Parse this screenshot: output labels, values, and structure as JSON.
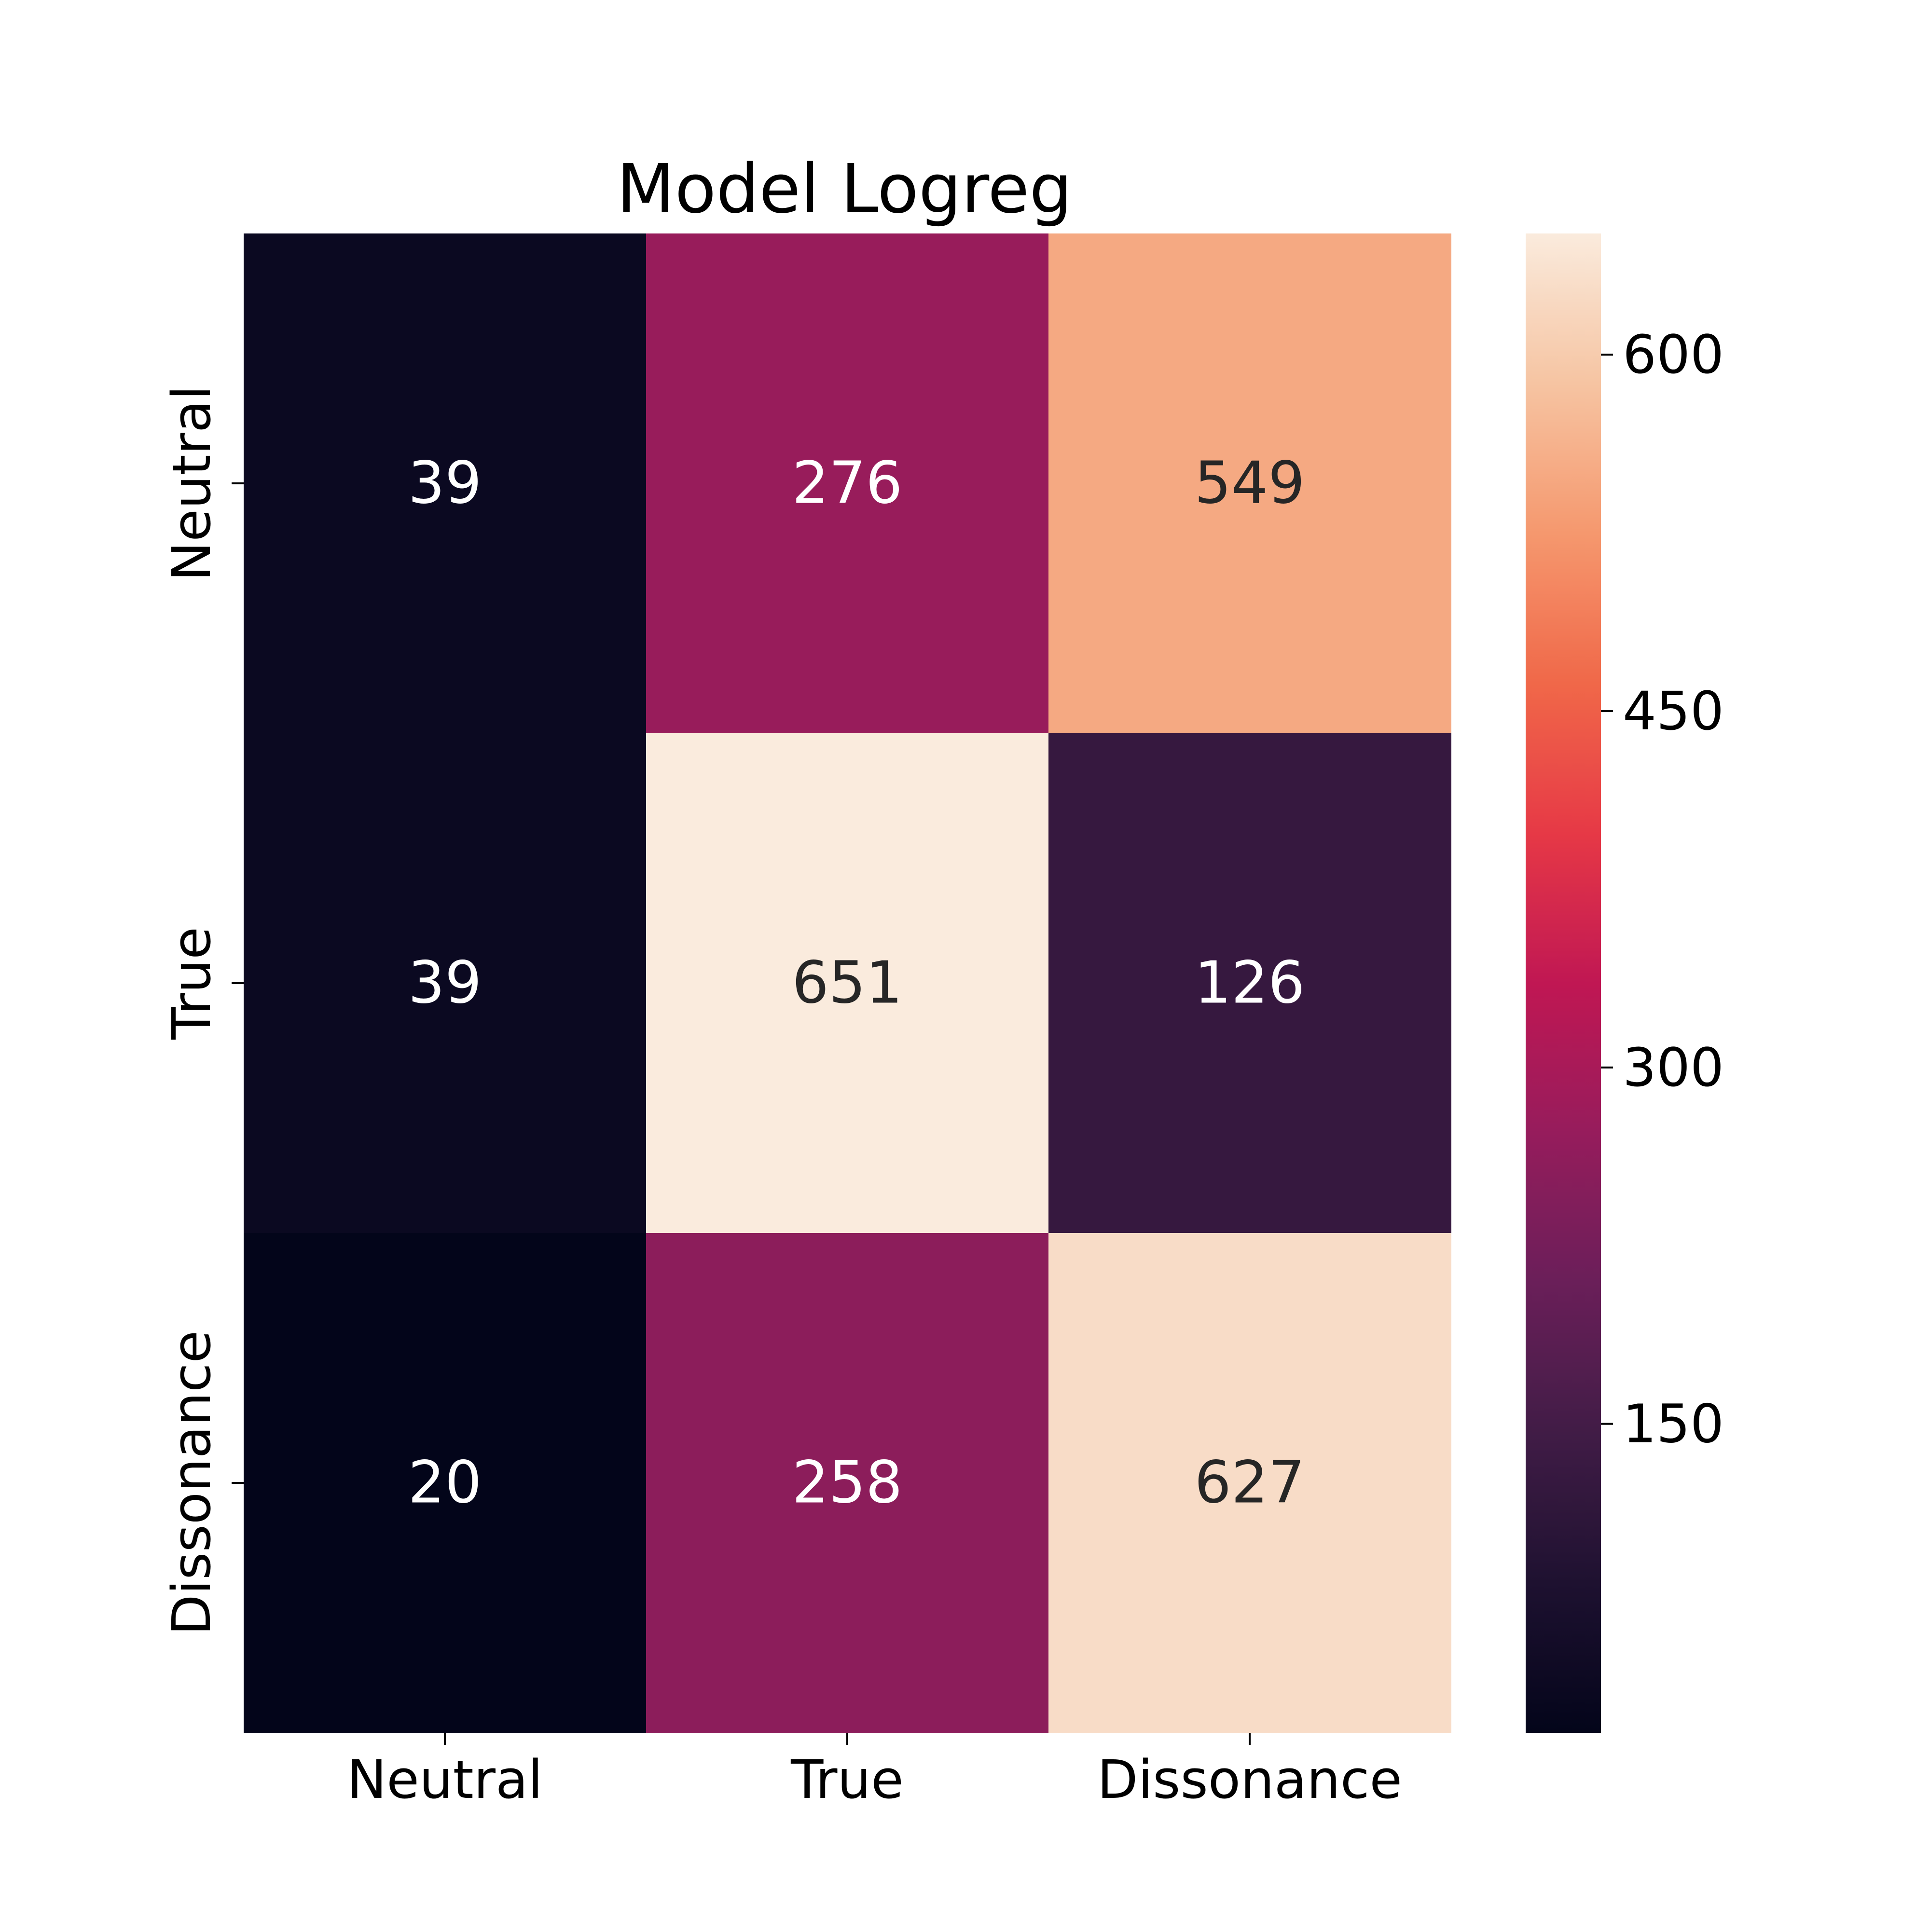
{
  "chart_data": {
    "type": "heatmap",
    "title": "Model Logreg",
    "row_labels": [
      "Neutral",
      "True",
      "Dissonance"
    ],
    "col_labels": [
      "Neutral",
      "True",
      "Dissonance"
    ],
    "values": [
      [
        39,
        276,
        549
      ],
      [
        39,
        651,
        126
      ],
      [
        20,
        258,
        627
      ]
    ],
    "colorbar": {
      "min": 20,
      "max": 651,
      "ticks": [
        150,
        300,
        450,
        600
      ],
      "colormap": "rocket"
    },
    "colors": {
      "background": "#ffffff",
      "text_dark": "#262626",
      "text_light": "#ffffff",
      "axis": "#000000"
    }
  }
}
